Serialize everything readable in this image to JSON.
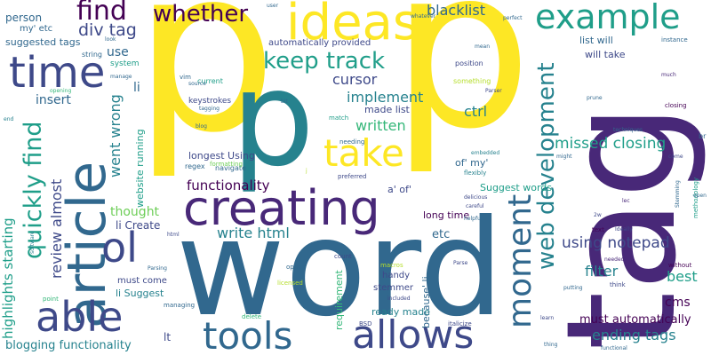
{
  "palette": [
    "#440154",
    "#482878",
    "#3e4989",
    "#31688e",
    "#26828e",
    "#1f9e89",
    "#35b779",
    "#6ece58",
    "#b5de2b",
    "#fde725"
  ],
  "words": [
    {
      "text": "p",
      "color": "#fde725"
    },
    {
      "text": "p",
      "color": "#26828e"
    },
    {
      "text": "p",
      "color": "#fde725"
    },
    {
      "text": "tag",
      "color": "#482878"
    },
    {
      "text": "word",
      "color": "#31688e"
    },
    {
      "text": "creating",
      "color": "#482878"
    },
    {
      "text": "article",
      "color": "#31688e"
    },
    {
      "text": "ideas",
      "color": "#fde725"
    },
    {
      "text": "example",
      "color": "#1f9e89"
    },
    {
      "text": "time",
      "color": "#3e4989"
    },
    {
      "text": "able",
      "color": "#3e4989"
    },
    {
      "text": "tools",
      "color": "#31688e"
    },
    {
      "text": "allows",
      "color": "#3e4989"
    },
    {
      "text": "take",
      "color": "#fde725"
    },
    {
      "text": "moment",
      "color": "#31688e"
    },
    {
      "text": "ol",
      "color": "#3e4989"
    },
    {
      "text": "keep track",
      "color": "#1f9e89"
    },
    {
      "text": "find",
      "color": "#440154"
    },
    {
      "text": "whether",
      "color": "#440154"
    },
    {
      "text": "quickly find",
      "color": "#1f9e89"
    },
    {
      "text": "web development",
      "color": "#26828e"
    },
    {
      "text": "blacklist",
      "color": "#31688e"
    },
    {
      "text": "div tag",
      "color": "#3e4989"
    },
    {
      "text": "person",
      "color": "#31688e"
    },
    {
      "text": "cursor",
      "color": "#3e4989"
    },
    {
      "text": "implement",
      "color": "#26828e"
    },
    {
      "text": "written",
      "color": "#35b779"
    },
    {
      "text": "ctrl",
      "color": "#26828e"
    },
    {
      "text": "went wrong",
      "color": "#26828e"
    },
    {
      "text": "missed closing",
      "color": "#1f9e89"
    },
    {
      "text": "functionality",
      "color": "#440154"
    },
    {
      "text": "write html",
      "color": "#26828e"
    },
    {
      "text": "using notepad",
      "color": "#3e4989"
    },
    {
      "text": "filter",
      "color": "#26828e"
    },
    {
      "text": "best",
      "color": "#1f9e89"
    },
    {
      "text": "ending tags",
      "color": "#26828e"
    },
    {
      "text": "must automatically",
      "color": "#440154"
    },
    {
      "text": "cms",
      "color": "#440154"
    },
    {
      "text": "review almost",
      "color": "#3e4989"
    },
    {
      "text": "highlights starting",
      "color": "#1f9e89"
    },
    {
      "text": "blogging functionality",
      "color": "#26828e"
    },
    {
      "text": "insert",
      "color": "#31688e"
    },
    {
      "text": "use",
      "color": "#31688e"
    },
    {
      "text": "li",
      "color": "#31688e"
    },
    {
      "text": "thought",
      "color": "#6ece58"
    },
    {
      "text": "li Create",
      "color": "#3e4989"
    },
    {
      "text": "website running",
      "color": "#1f9e89"
    },
    {
      "text": "suggested tags",
      "color": "#31688e"
    },
    {
      "text": "automatically provided",
      "color": "#3e4989"
    },
    {
      "text": "made list",
      "color": "#3e4989"
    },
    {
      "text": "list will",
      "color": "#31688e"
    },
    {
      "text": "will take",
      "color": "#3e4989"
    },
    {
      "text": "longest Using",
      "color": "#3e4989"
    },
    {
      "text": "Suggest words",
      "color": "#1f9e89"
    },
    {
      "text": "long time",
      "color": "#440154"
    },
    {
      "text": "etc",
      "color": "#31688e"
    },
    {
      "text": "a' of'",
      "color": "#3e4989"
    },
    {
      "text": "of' my'",
      "color": "#31688e"
    },
    {
      "text": "must come",
      "color": "#3e4989"
    },
    {
      "text": "li Suggest",
      "color": "#26828e"
    },
    {
      "text": "lt",
      "color": "#3e4989"
    },
    {
      "text": "requirement",
      "color": "#35b779"
    },
    {
      "text": "because' li",
      "color": "#31688e"
    },
    {
      "text": "ready made",
      "color": "#26828e"
    },
    {
      "text": "stemmer",
      "color": "#3e4989"
    },
    {
      "text": "handy",
      "color": "#3e4989"
    },
    {
      "text": "my' etc",
      "color": "#31688e"
    },
    {
      "text": "string",
      "color": "#31688e"
    },
    {
      "text": "system",
      "color": "#1f9e89"
    },
    {
      "text": "keystrokes",
      "color": "#3e4989"
    },
    {
      "text": "current",
      "color": "#1f9e89"
    },
    {
      "text": "navigate",
      "color": "#31688e"
    },
    {
      "text": "regex",
      "color": "#31688e"
    },
    {
      "text": "formatting",
      "color": "#6ece58"
    },
    {
      "text": "position",
      "color": "#3e4989"
    },
    {
      "text": "something",
      "color": "#b5de2b"
    },
    {
      "text": "needing",
      "color": "#31688e"
    },
    {
      "text": "embedded",
      "color": "#26828e"
    },
    {
      "text": "flexibly",
      "color": "#26828e"
    },
    {
      "text": "preferred",
      "color": "#3e4989"
    },
    {
      "text": "count",
      "color": "#3e4989"
    },
    {
      "text": "option",
      "color": "#31688e"
    },
    {
      "text": "macros",
      "color": "#b5de2b"
    },
    {
      "text": "licensed",
      "color": "#b5de2b"
    },
    {
      "text": "BSD",
      "color": "#3e4989"
    },
    {
      "text": "Parse",
      "color": "#3e4989"
    },
    {
      "text": "italicize",
      "color": "#3e4989"
    },
    {
      "text": "delete",
      "color": "#35b779"
    },
    {
      "text": "managing",
      "color": "#31688e"
    },
    {
      "text": "point",
      "color": "#35b779"
    },
    {
      "text": "opening",
      "color": "#35b779"
    },
    {
      "text": "manage",
      "color": "#31688e"
    },
    {
      "text": "tagging",
      "color": "#31688e"
    },
    {
      "text": "vim",
      "color": "#31688e"
    },
    {
      "text": "blog",
      "color": "#31688e"
    },
    {
      "text": "bit",
      "color": "#31688e"
    },
    {
      "text": "match",
      "color": "#1f9e89"
    },
    {
      "text": "mean",
      "color": "#31688e"
    },
    {
      "text": "Parser",
      "color": "#3e4989"
    },
    {
      "text": "prune",
      "color": "#31688e"
    },
    {
      "text": "instance",
      "color": "#31688e"
    },
    {
      "text": "closing",
      "color": "#440154"
    },
    {
      "text": "much",
      "color": "#482878"
    },
    {
      "text": "techniques",
      "color": "#31688e"
    },
    {
      "text": "might",
      "color": "#31688e"
    },
    {
      "text": "come",
      "color": "#3e4989"
    },
    {
      "text": "br",
      "color": "#31688e"
    },
    {
      "text": "text",
      "color": "#440154"
    },
    {
      "text": "Ideally",
      "color": "#3e4989"
    },
    {
      "text": "2w",
      "color": "#3e4989"
    },
    {
      "text": "lec",
      "color": "#482878"
    },
    {
      "text": "methodology",
      "color": "#1f9e89"
    },
    {
      "text": "Stemming",
      "color": "#31688e"
    },
    {
      "text": "open",
      "color": "#31688e"
    },
    {
      "text": "without",
      "color": "#440154"
    },
    {
      "text": "needed",
      "color": "#482878"
    },
    {
      "text": "think",
      "color": "#3e4989"
    },
    {
      "text": "putting",
      "color": "#31688e"
    },
    {
      "text": "learn",
      "color": "#3e4989"
    },
    {
      "text": "thing",
      "color": "#31688e"
    },
    {
      "text": "functional",
      "color": "#31688e"
    },
    {
      "text": "careful",
      "color": "#3e4989"
    },
    {
      "text": "delicious",
      "color": "#3e4989"
    },
    {
      "text": "helpful",
      "color": "#31688e"
    },
    {
      "text": "user",
      "color": "#31688e"
    },
    {
      "text": "whatever",
      "color": "#31688e"
    },
    {
      "text": "perfect",
      "color": "#31688e"
    },
    {
      "text": "look",
      "color": "#31688e"
    },
    {
      "text": "source",
      "color": "#31688e"
    },
    {
      "text": "j",
      "color": "#b5de2b"
    },
    {
      "text": "end",
      "color": "#26828e"
    },
    {
      "text": "software",
      "color": "#26828e"
    },
    {
      "text": "html",
      "color": "#3e4989"
    },
    {
      "text": "Parsing",
      "color": "#31688e"
    },
    {
      "text": "included",
      "color": "#3e4989"
    }
  ]
}
